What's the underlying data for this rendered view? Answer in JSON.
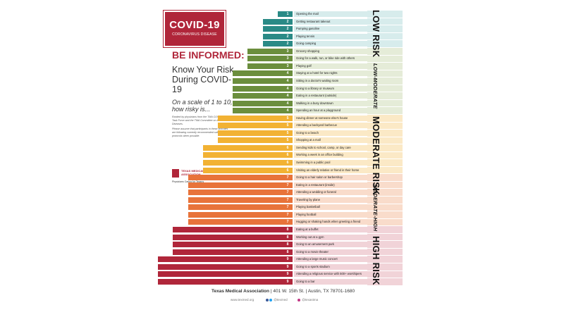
{
  "poster": {
    "logo_title": "COVID-19",
    "logo_subtitle": "CORONAVIRUS DISEASE",
    "headline": "BE INFORMED:",
    "subheadline": "Know Your Risk During COVID-19",
    "scale_question": "On a scale of 1 to 10, how risky is...",
    "note_1": "Ranked by physicians from the TMA COVID-19 Task Force and the TMA Committee on Infectious Diseases.",
    "note_2": "Please assume that participants in these activities are following currently recommended safety protocols when possible.",
    "tma_name": "TEXAS MEDICAL ASSOCIATION",
    "tma_tagline": "Physicians Caring for Texans",
    "footer_org": "Texas Medical Association",
    "footer_address": "| 401 W. 15th St. | Austin, TX 78701-1680",
    "footer_web": "www.texmed.org",
    "footer_social_1": "@texmed",
    "footer_social_2": "@texastma"
  },
  "risk_labels": {
    "low": "LOW RISK",
    "low_moderate": "LOW-MODERATE",
    "moderate": "MODERATE RISK",
    "moderate_high": "MODERATE-HIGH",
    "high": "HIGH RISK"
  },
  "colors": {
    "low": "#2a8a86",
    "low_moderate": "#6b8e3d",
    "moderate": "#f2b233",
    "moderate_high": "#e8733a",
    "high": "#b0263a",
    "band_low": "#d7ecec",
    "band_low_moderate": "#e5ecd8",
    "band_moderate": "#fbe9c6",
    "band_moderate_high": "#f9dccb",
    "band_high": "#f1d3d8"
  },
  "chart_data": {
    "type": "bar",
    "orientation": "horizontal",
    "xlim": [
      0,
      10
    ],
    "categories": [
      "Opening the mail",
      "Getting restaurant takeout",
      "Pumping gasoline",
      "Playing tennis",
      "Going camping",
      "Grocery shopping",
      "Going for a walk, run, or bike ride with others",
      "Playing golf",
      "Staying at a hotel for two nights",
      "Sitting in a doctor's waiting room",
      "Going to a library or museum",
      "Eating in a restaurant (outside)",
      "Walking in a busy downtown",
      "Spending an hour at a playground",
      "Having dinner at someone else's house",
      "Attending a backyard barbecue",
      "Going to a beach",
      "Shopping at a mall",
      "Sending kids to school, camp, or day care",
      "Working a week in an office building",
      "Swimming in a public pool",
      "Visiting an elderly relative or friend in their home",
      "Going to a hair salon or barbershop",
      "Eating in a restaurant (inside)",
      "Attending a wedding or funeral",
      "Traveling by plane",
      "Playing basketball",
      "Playing football",
      "Hugging or shaking hands when greeting a friend",
      "Eating at a buffet",
      "Working out at a gym",
      "Going to an amusement park",
      "Going to a movie theater",
      "Attending a large music concert",
      "Going to a sports stadium",
      "Attending a religious service with 500+ worshipers",
      "Going to a bar"
    ],
    "values": [
      1,
      2,
      2,
      2,
      2,
      3,
      3,
      3,
      4,
      4,
      4,
      4,
      4,
      4,
      5,
      5,
      5,
      5,
      6,
      6,
      6,
      6,
      7,
      7,
      7,
      7,
      7,
      7,
      7,
      8,
      8,
      8,
      8,
      9,
      9,
      9,
      9
    ],
    "risk_groups": [
      "low",
      "low",
      "low",
      "low",
      "low",
      "low_moderate",
      "low_moderate",
      "low_moderate",
      "low_moderate",
      "low_moderate",
      "low_moderate",
      "low_moderate",
      "low_moderate",
      "low_moderate",
      "moderate",
      "moderate",
      "moderate",
      "moderate",
      "moderate",
      "moderate",
      "moderate",
      "moderate",
      "moderate_high",
      "moderate_high",
      "moderate_high",
      "moderate_high",
      "moderate_high",
      "moderate_high",
      "moderate_high",
      "high",
      "high",
      "high",
      "high",
      "high",
      "high",
      "high",
      "high"
    ]
  }
}
